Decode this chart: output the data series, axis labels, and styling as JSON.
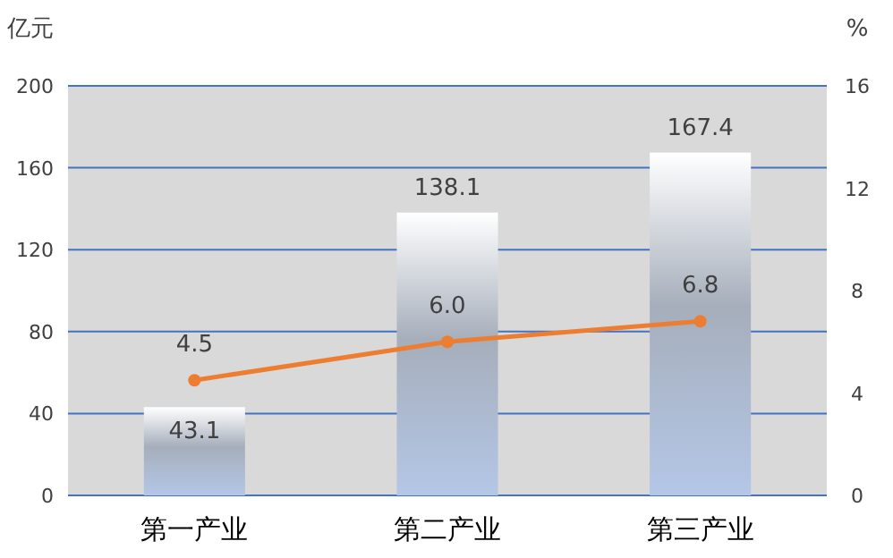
{
  "chart_data": {
    "type": "bar",
    "ylabel": "亿元",
    "y2label": "%",
    "categories": [
      "第一产业",
      "第二产业",
      "第三产业"
    ],
    "series": [
      {
        "color": "#b4c7e7",
        "values": [
          43.1,
          138.1,
          167.4
        ],
        "value_labels": [
          "43.1",
          "138.1",
          "167.4"
        ]
      },
      {
        "type": "line",
        "axis": "y2",
        "color": "#ed7d31",
        "values": [
          4.5,
          6.0,
          6.8
        ],
        "value_labels": [
          "4.5",
          "6.0",
          "6.8"
        ],
        "marker": "circle"
      }
    ],
    "ylim": [
      0,
      200
    ],
    "yticks": [
      0,
      40,
      80,
      120,
      160,
      200
    ],
    "y2lim": [
      0,
      16
    ],
    "y2ticks": [
      0,
      4,
      8,
      12,
      16
    ],
    "grid": "y"
  }
}
